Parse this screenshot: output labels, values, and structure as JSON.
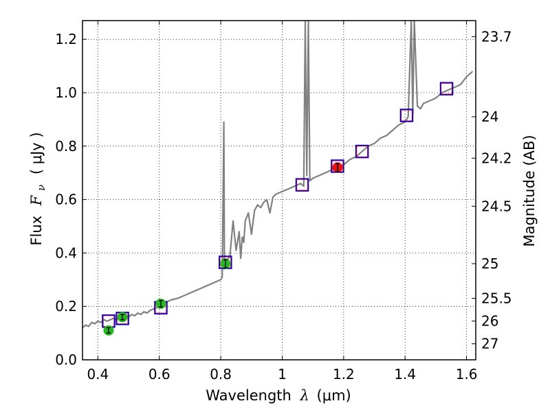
{
  "chart_data": {
    "type": "line",
    "xlabel_prefix": "Wavelength",
    "xlabel_symbol": "λ",
    "xlabel_unit": "(μm)",
    "ylabel_prefix": "Flux",
    "ylabel_symbol": "F",
    "ylabel_subscript": "ν",
    "ylabel_unit": "( μJy )",
    "y2label": "Magnitude (AB)",
    "xlim": [
      0.35,
      1.63
    ],
    "ylim": [
      0.0,
      1.27
    ],
    "xticks": [
      0.4,
      0.6,
      0.8,
      1.0,
      1.2,
      1.4,
      1.6
    ],
    "xtick_labels": [
      "0.4",
      "0.6",
      "0.8",
      "1",
      "1.2",
      "1.4",
      "1.6"
    ],
    "yticks": [
      0.0,
      0.2,
      0.4,
      0.6,
      0.8,
      1.0,
      1.2
    ],
    "ytick_labels": [
      "0.0",
      "0.2",
      "0.4",
      "0.6",
      "0.8",
      "1.0",
      "1.2"
    ],
    "magnitude_ticks": [
      {
        "flux": 1.21,
        "label": "23.7"
      },
      {
        "flux": 0.91,
        "label": "24"
      },
      {
        "flux": 0.755,
        "label": "24.2"
      },
      {
        "flux": 0.575,
        "label": "24.5"
      },
      {
        "flux": 0.36,
        "label": "25"
      },
      {
        "flux": 0.23,
        "label": "25.5"
      },
      {
        "flux": 0.145,
        "label": "26"
      },
      {
        "flux": 0.06,
        "label": "27"
      }
    ],
    "grid": true,
    "colors": {
      "spectrum": "#808080",
      "model_points": "#0000cc",
      "model_points_inner": "#cc0033",
      "observed_optical": "#22bb22",
      "observed_ir": "#ee1111",
      "errorbar": "#000000"
    },
    "spectrum": {
      "x": [
        0.35,
        0.36,
        0.37,
        0.38,
        0.39,
        0.4,
        0.41,
        0.42,
        0.43,
        0.44,
        0.45,
        0.46,
        0.47,
        0.48,
        0.49,
        0.5,
        0.51,
        0.52,
        0.53,
        0.54,
        0.55,
        0.56,
        0.57,
        0.58,
        0.59,
        0.6,
        0.62,
        0.64,
        0.66,
        0.68,
        0.7,
        0.72,
        0.74,
        0.76,
        0.78,
        0.8,
        0.805,
        0.81,
        0.812,
        0.815,
        0.82,
        0.83,
        0.84,
        0.85,
        0.86,
        0.865,
        0.87,
        0.875,
        0.88,
        0.89,
        0.9,
        0.91,
        0.92,
        0.93,
        0.94,
        0.95,
        0.96,
        0.97,
        0.98,
        1.0,
        1.02,
        1.04,
        1.06,
        1.07,
        1.075,
        1.08,
        1.085,
        1.09,
        1.1,
        1.12,
        1.14,
        1.16,
        1.18,
        1.2,
        1.22,
        1.24,
        1.26,
        1.28,
        1.3,
        1.32,
        1.34,
        1.36,
        1.38,
        1.4,
        1.41,
        1.42,
        1.425,
        1.43,
        1.44,
        1.45,
        1.46,
        1.48,
        1.5,
        1.52,
        1.54,
        1.56,
        1.58,
        1.6,
        1.62
      ],
      "y": [
        0.12,
        0.13,
        0.125,
        0.14,
        0.135,
        0.145,
        0.14,
        0.15,
        0.145,
        0.15,
        0.155,
        0.15,
        0.16,
        0.155,
        0.165,
        0.16,
        0.17,
        0.165,
        0.175,
        0.17,
        0.18,
        0.175,
        0.185,
        0.19,
        0.195,
        0.2,
        0.215,
        0.225,
        0.23,
        0.24,
        0.25,
        0.26,
        0.27,
        0.28,
        0.29,
        0.3,
        0.31,
        0.89,
        0.34,
        0.36,
        0.37,
        0.39,
        0.52,
        0.41,
        0.48,
        0.38,
        0.46,
        0.44,
        0.52,
        0.55,
        0.47,
        0.56,
        0.58,
        0.57,
        0.59,
        0.6,
        0.55,
        0.61,
        0.62,
        0.63,
        0.64,
        0.65,
        0.66,
        0.65,
        1.27,
        0.69,
        1.27,
        0.67,
        0.68,
        0.69,
        0.7,
        0.71,
        0.72,
        0.73,
        0.75,
        0.76,
        0.78,
        0.8,
        0.81,
        0.83,
        0.84,
        0.86,
        0.88,
        0.89,
        0.91,
        1.27,
        0.92,
        1.27,
        0.95,
        0.94,
        0.96,
        0.97,
        0.98,
        1.0,
        1.01,
        1.02,
        1.03,
        1.06,
        1.08
      ]
    },
    "model_points": [
      {
        "x": 0.435,
        "y": 0.145
      },
      {
        "x": 0.48,
        "y": 0.155
      },
      {
        "x": 0.605,
        "y": 0.195
      },
      {
        "x": 0.815,
        "y": 0.365
      },
      {
        "x": 1.065,
        "y": 0.655
      },
      {
        "x": 1.18,
        "y": 0.725
      },
      {
        "x": 1.26,
        "y": 0.78
      },
      {
        "x": 1.405,
        "y": 0.915
      },
      {
        "x": 1.535,
        "y": 1.015
      }
    ],
    "observed_optical": [
      {
        "x": 0.435,
        "y": 0.11,
        "err": 0.01
      },
      {
        "x": 0.48,
        "y": 0.16,
        "err": 0.01
      },
      {
        "x": 0.605,
        "y": 0.21,
        "err": 0.012
      },
      {
        "x": 0.815,
        "y": 0.36,
        "err": 0.015
      }
    ],
    "observed_ir": [
      {
        "x": 1.18,
        "y": 0.72,
        "err": 0.015
      }
    ]
  }
}
